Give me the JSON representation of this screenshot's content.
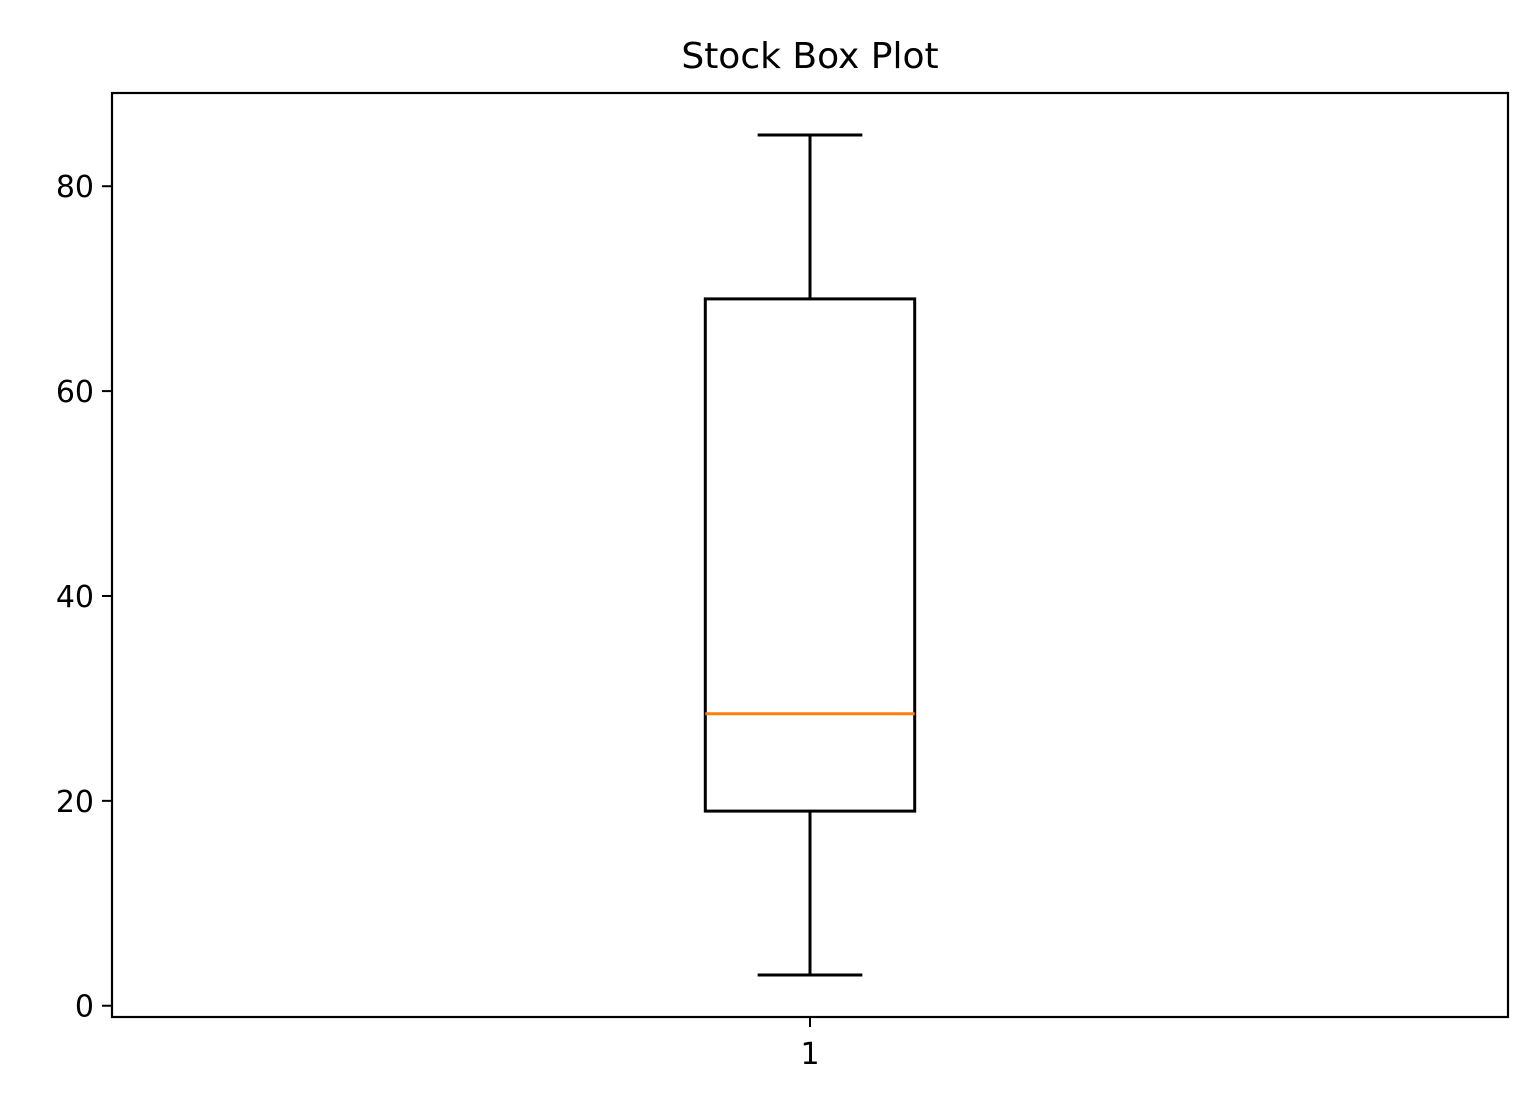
{
  "chart_data": {
    "type": "box",
    "title": "Stock Box Plot",
    "xlabel": "",
    "ylabel": "",
    "categories": [
      "1"
    ],
    "boxes": [
      {
        "category": "1",
        "whisker_low": 3,
        "q1": 19,
        "median": 28.5,
        "q3": 69,
        "whisker_high": 85
      }
    ],
    "ylim": [
      -1.1,
      89.1
    ],
    "yticks": [
      0,
      20,
      40,
      60,
      80
    ],
    "ytick_labels": [
      "0",
      "20",
      "40",
      "60",
      "80"
    ],
    "grid": false,
    "colors": {
      "box": "#000000",
      "median": "#ff7f0e",
      "whisker": "#000000"
    }
  }
}
